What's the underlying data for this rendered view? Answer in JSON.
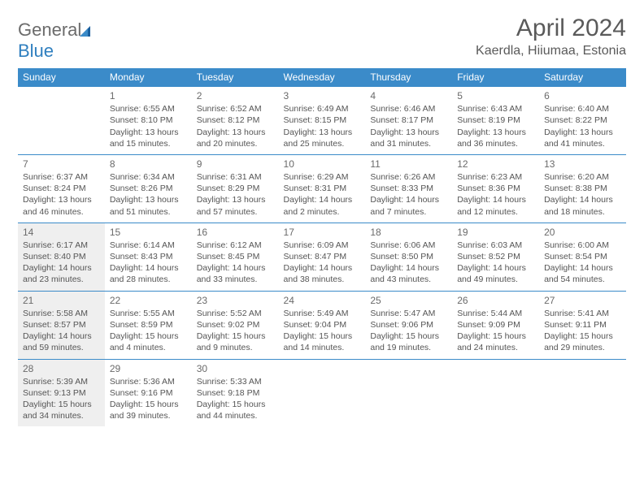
{
  "logo": {
    "word1": "General",
    "word2": "Blue"
  },
  "title": "April 2024",
  "location": "Kaerdla, Hiiumaa, Estonia",
  "colors": {
    "header_bg": "#3b8bc9",
    "header_text": "#ffffff",
    "cell_border": "#3b8bc9",
    "shaded_bg": "#efefef",
    "body_text": "#555555",
    "daynum_text": "#6a6a6a",
    "title_text": "#5a5a5a",
    "logo_gray": "#6b6b6b",
    "logo_blue": "#2f7fbf"
  },
  "weekdays": [
    "Sunday",
    "Monday",
    "Tuesday",
    "Wednesday",
    "Thursday",
    "Friday",
    "Saturday"
  ],
  "weeks": [
    [
      null,
      {
        "n": "1",
        "sr": "Sunrise: 6:55 AM",
        "ss": "Sunset: 8:10 PM",
        "d1": "Daylight: 13 hours",
        "d2": "and 15 minutes."
      },
      {
        "n": "2",
        "sr": "Sunrise: 6:52 AM",
        "ss": "Sunset: 8:12 PM",
        "d1": "Daylight: 13 hours",
        "d2": "and 20 minutes."
      },
      {
        "n": "3",
        "sr": "Sunrise: 6:49 AM",
        "ss": "Sunset: 8:15 PM",
        "d1": "Daylight: 13 hours",
        "d2": "and 25 minutes."
      },
      {
        "n": "4",
        "sr": "Sunrise: 6:46 AM",
        "ss": "Sunset: 8:17 PM",
        "d1": "Daylight: 13 hours",
        "d2": "and 31 minutes."
      },
      {
        "n": "5",
        "sr": "Sunrise: 6:43 AM",
        "ss": "Sunset: 8:19 PM",
        "d1": "Daylight: 13 hours",
        "d2": "and 36 minutes."
      },
      {
        "n": "6",
        "sr": "Sunrise: 6:40 AM",
        "ss": "Sunset: 8:22 PM",
        "d1": "Daylight: 13 hours",
        "d2": "and 41 minutes."
      }
    ],
    [
      {
        "n": "7",
        "sr": "Sunrise: 6:37 AM",
        "ss": "Sunset: 8:24 PM",
        "d1": "Daylight: 13 hours",
        "d2": "and 46 minutes."
      },
      {
        "n": "8",
        "sr": "Sunrise: 6:34 AM",
        "ss": "Sunset: 8:26 PM",
        "d1": "Daylight: 13 hours",
        "d2": "and 51 minutes."
      },
      {
        "n": "9",
        "sr": "Sunrise: 6:31 AM",
        "ss": "Sunset: 8:29 PM",
        "d1": "Daylight: 13 hours",
        "d2": "and 57 minutes."
      },
      {
        "n": "10",
        "sr": "Sunrise: 6:29 AM",
        "ss": "Sunset: 8:31 PM",
        "d1": "Daylight: 14 hours",
        "d2": "and 2 minutes."
      },
      {
        "n": "11",
        "sr": "Sunrise: 6:26 AM",
        "ss": "Sunset: 8:33 PM",
        "d1": "Daylight: 14 hours",
        "d2": "and 7 minutes."
      },
      {
        "n": "12",
        "sr": "Sunrise: 6:23 AM",
        "ss": "Sunset: 8:36 PM",
        "d1": "Daylight: 14 hours",
        "d2": "and 12 minutes."
      },
      {
        "n": "13",
        "sr": "Sunrise: 6:20 AM",
        "ss": "Sunset: 8:38 PM",
        "d1": "Daylight: 14 hours",
        "d2": "and 18 minutes."
      }
    ],
    [
      {
        "n": "14",
        "sr": "Sunrise: 6:17 AM",
        "ss": "Sunset: 8:40 PM",
        "d1": "Daylight: 14 hours",
        "d2": "and 23 minutes.",
        "shaded": true
      },
      {
        "n": "15",
        "sr": "Sunrise: 6:14 AM",
        "ss": "Sunset: 8:43 PM",
        "d1": "Daylight: 14 hours",
        "d2": "and 28 minutes."
      },
      {
        "n": "16",
        "sr": "Sunrise: 6:12 AM",
        "ss": "Sunset: 8:45 PM",
        "d1": "Daylight: 14 hours",
        "d2": "and 33 minutes."
      },
      {
        "n": "17",
        "sr": "Sunrise: 6:09 AM",
        "ss": "Sunset: 8:47 PM",
        "d1": "Daylight: 14 hours",
        "d2": "and 38 minutes."
      },
      {
        "n": "18",
        "sr": "Sunrise: 6:06 AM",
        "ss": "Sunset: 8:50 PM",
        "d1": "Daylight: 14 hours",
        "d2": "and 43 minutes."
      },
      {
        "n": "19",
        "sr": "Sunrise: 6:03 AM",
        "ss": "Sunset: 8:52 PM",
        "d1": "Daylight: 14 hours",
        "d2": "and 49 minutes."
      },
      {
        "n": "20",
        "sr": "Sunrise: 6:00 AM",
        "ss": "Sunset: 8:54 PM",
        "d1": "Daylight: 14 hours",
        "d2": "and 54 minutes."
      }
    ],
    [
      {
        "n": "21",
        "sr": "Sunrise: 5:58 AM",
        "ss": "Sunset: 8:57 PM",
        "d1": "Daylight: 14 hours",
        "d2": "and 59 minutes.",
        "shaded": true
      },
      {
        "n": "22",
        "sr": "Sunrise: 5:55 AM",
        "ss": "Sunset: 8:59 PM",
        "d1": "Daylight: 15 hours",
        "d2": "and 4 minutes."
      },
      {
        "n": "23",
        "sr": "Sunrise: 5:52 AM",
        "ss": "Sunset: 9:02 PM",
        "d1": "Daylight: 15 hours",
        "d2": "and 9 minutes."
      },
      {
        "n": "24",
        "sr": "Sunrise: 5:49 AM",
        "ss": "Sunset: 9:04 PM",
        "d1": "Daylight: 15 hours",
        "d2": "and 14 minutes."
      },
      {
        "n": "25",
        "sr": "Sunrise: 5:47 AM",
        "ss": "Sunset: 9:06 PM",
        "d1": "Daylight: 15 hours",
        "d2": "and 19 minutes."
      },
      {
        "n": "26",
        "sr": "Sunrise: 5:44 AM",
        "ss": "Sunset: 9:09 PM",
        "d1": "Daylight: 15 hours",
        "d2": "and 24 minutes."
      },
      {
        "n": "27",
        "sr": "Sunrise: 5:41 AM",
        "ss": "Sunset: 9:11 PM",
        "d1": "Daylight: 15 hours",
        "d2": "and 29 minutes."
      }
    ],
    [
      {
        "n": "28",
        "sr": "Sunrise: 5:39 AM",
        "ss": "Sunset: 9:13 PM",
        "d1": "Daylight: 15 hours",
        "d2": "and 34 minutes.",
        "shaded": true
      },
      {
        "n": "29",
        "sr": "Sunrise: 5:36 AM",
        "ss": "Sunset: 9:16 PM",
        "d1": "Daylight: 15 hours",
        "d2": "and 39 minutes."
      },
      {
        "n": "30",
        "sr": "Sunrise: 5:33 AM",
        "ss": "Sunset: 9:18 PM",
        "d1": "Daylight: 15 hours",
        "d2": "and 44 minutes."
      },
      null,
      null,
      null,
      null
    ]
  ]
}
